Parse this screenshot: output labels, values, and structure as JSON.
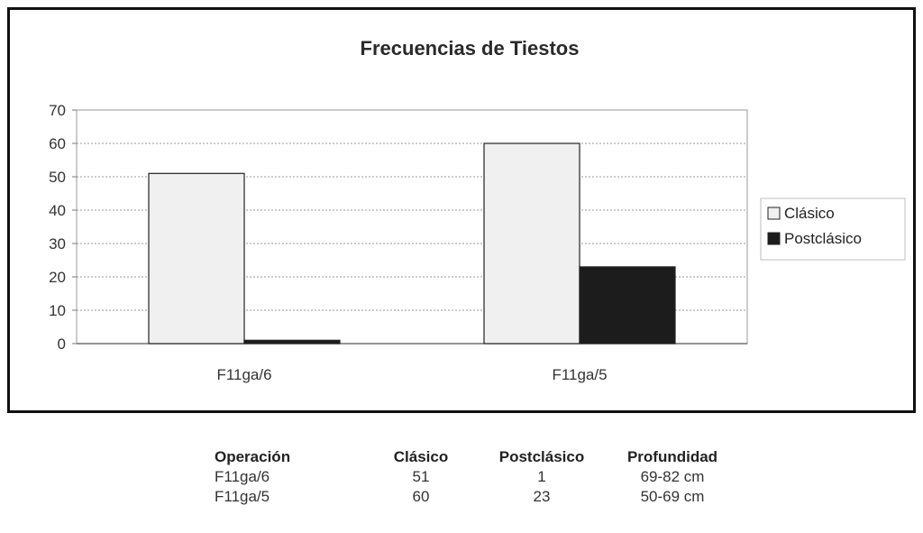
{
  "chart_data": {
    "type": "bar",
    "title": "Frecuencias de Tiestos",
    "categories": [
      "F11ga/6",
      "F11ga/5"
    ],
    "series": [
      {
        "name": "Clásico",
        "values": [
          51,
          60
        ],
        "color": "#f0f0f0"
      },
      {
        "name": "Postclásico",
        "values": [
          1,
          23
        ],
        "color": "#1c1c1c"
      }
    ],
    "ylim": [
      0,
      70
    ],
    "yticks": [
      "0",
      "10",
      "20",
      "30",
      "40",
      "50",
      "60",
      "70"
    ],
    "grid": true,
    "legend": "right"
  },
  "table": {
    "headers": [
      "Operación",
      "Clásico",
      "Postclásico",
      "Profundidad"
    ],
    "rows": [
      [
        "F11ga/6",
        "51",
        "1",
        "69-82 cm"
      ],
      [
        "F11ga/5",
        "60",
        "23",
        "50-69 cm"
      ]
    ]
  }
}
